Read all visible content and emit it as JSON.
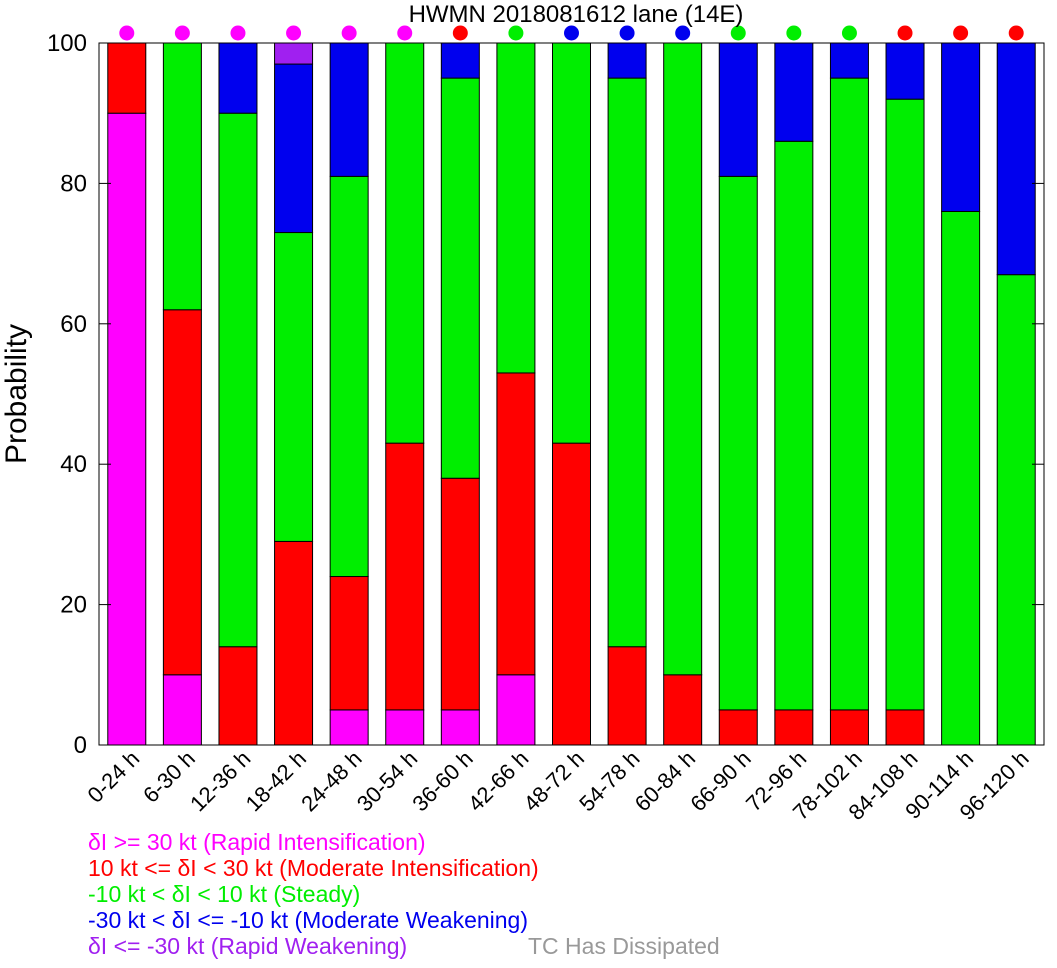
{
  "chart_data": {
    "type": "bar",
    "stacked": true,
    "title": "HWMN 2018081612 lane (14E)",
    "ylabel": "Probability",
    "xlabel": "",
    "ylim": [
      0,
      100
    ],
    "yticks": [
      0,
      20,
      40,
      60,
      80,
      100
    ],
    "categories": [
      "0-24 h",
      "6-30 h",
      "12-36 h",
      "18-42 h",
      "24-48 h",
      "30-54 h",
      "36-60 h",
      "42-66 h",
      "48-72 h",
      "54-78 h",
      "60-84 h",
      "66-90 h",
      "72-96 h",
      "78-102 h",
      "84-108 h",
      "90-114 h",
      "96-120 h"
    ],
    "series": [
      {
        "key": "ri",
        "color": "#ff00ff",
        "values": [
          90,
          10,
          0,
          0,
          5,
          5,
          5,
          10,
          0,
          0,
          0,
          0,
          0,
          0,
          0,
          0,
          0
        ]
      },
      {
        "key": "mi",
        "color": "#ff0000",
        "values": [
          10,
          52,
          14,
          29,
          19,
          38,
          33,
          43,
          43,
          14,
          10,
          5,
          5,
          5,
          5,
          0,
          0
        ]
      },
      {
        "key": "st",
        "color": "#00ee00",
        "values": [
          0,
          38,
          76,
          44,
          57,
          57,
          57,
          47,
          57,
          81,
          90,
          76,
          81,
          90,
          87,
          76,
          67
        ]
      },
      {
        "key": "mw",
        "color": "#0000ee",
        "values": [
          0,
          0,
          10,
          24,
          19,
          0,
          5,
          0,
          0,
          5,
          0,
          19,
          14,
          5,
          8,
          24,
          33
        ]
      },
      {
        "key": "rw",
        "color": "#a020f0",
        "values": [
          0,
          0,
          0,
          3,
          0,
          0,
          0,
          0,
          0,
          0,
          0,
          0,
          0,
          0,
          0,
          0,
          0
        ]
      }
    ],
    "top_markers": [
      "#ff00ff",
      "#ff00ff",
      "#ff00ff",
      "#ff00ff",
      "#ff00ff",
      "#ff00ff",
      "#ff0000",
      "#00ee00",
      "#0000ee",
      "#0000ee",
      "#0000ee",
      "#00ee00",
      "#00ee00",
      "#00ee00",
      "#ff0000",
      "#ff0000",
      "#ff0000"
    ],
    "grid": false,
    "legend_placement": "bottom-left"
  },
  "legend": [
    {
      "label": "δI >= 30 kt (Rapid Intensification)",
      "color": "#ff00ff"
    },
    {
      "label": "10 kt <= δI < 30 kt (Moderate Intensification)",
      "color": "#ff0000"
    },
    {
      "label": "-10 kt < δI < 10 kt (Steady)",
      "color": "#00ee00"
    },
    {
      "label": "-30 kt < δI <= -10 kt (Moderate Weakening)",
      "color": "#0000ee"
    },
    {
      "label": "δI <= -30 kt (Rapid Weakening)",
      "color": "#a020f0"
    }
  ],
  "dissipated": {
    "label": "TC Has Dissipated",
    "color": "#999999"
  }
}
